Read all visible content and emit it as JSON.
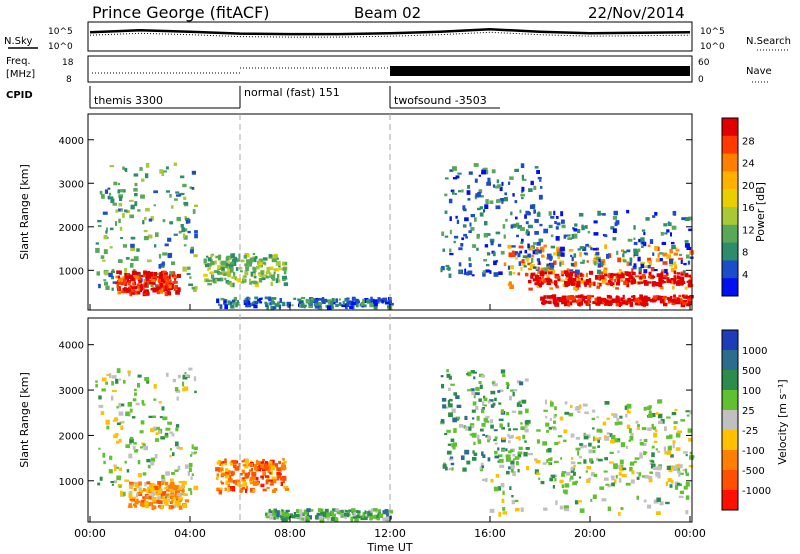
{
  "header": {
    "station": "Prince George (fitACF)",
    "beam": "Beam 02",
    "date": "22/Nov/2014"
  },
  "top_panels": {
    "nsky_label": "N.Sky",
    "nsky_ticks": [
      "10^5",
      "10^0"
    ],
    "nsearch_label": "N.Search",
    "freq_label_1": "Freq.",
    "freq_label_2": "[MHz]",
    "freq_ticks": [
      "18",
      "8"
    ],
    "nave_ticks": [
      "60",
      "0"
    ],
    "nave_label": "Nave",
    "cpid_label": "CPID",
    "cpid_modes": [
      "themis 3300",
      "normal (fast) 151",
      "twofsound -3503"
    ]
  },
  "colorbars": {
    "power": {
      "label": "Power [dB]",
      "ticks": [
        "28",
        "24",
        "20",
        "16",
        "12",
        "8",
        "4"
      ],
      "colors": [
        "#e00000",
        "#ff3a00",
        "#ff8000",
        "#ffb000",
        "#e8d000",
        "#a8c838",
        "#58a858",
        "#2c8c6c",
        "#1c4cc8",
        "#0010f0"
      ]
    },
    "velocity": {
      "label": "Velocity [m s⁻¹]",
      "ticks": [
        "1000",
        "500",
        "100",
        "25",
        "-25",
        "-100",
        "-500",
        "-1000"
      ],
      "colors": [
        "#1c3cb8",
        "#2c6c8c",
        "#2c8c4c",
        "#60c030",
        "#c0c0c0",
        "#ffc000",
        "#ff8000",
        "#ff5000",
        "#ff1000"
      ]
    }
  },
  "axes": {
    "ylabel": "Slant Range [km]",
    "xlabel": "Time UT",
    "yticks": [
      "4000",
      "3000",
      "2000",
      "1000"
    ],
    "xticks": [
      "00:00",
      "04:00",
      "08:00",
      "12:00",
      "16:00",
      "20:00",
      "00:00"
    ]
  },
  "chart_data": [
    {
      "type": "line",
      "name": "N.Sky / N.Search",
      "x": [
        0,
        2,
        4,
        6,
        8,
        10,
        12,
        14,
        16,
        18,
        20,
        22,
        24
      ],
      "y_log10": [
        3.5,
        3.9,
        3.6,
        3.2,
        3.1,
        3.1,
        3.3,
        3.6,
        4.1,
        3.6,
        3.3,
        3.4,
        3.5
      ],
      "ylim": [
        0,
        5
      ]
    },
    {
      "type": "line",
      "name": "Freq / Nave",
      "x": [
        0,
        6,
        12,
        24
      ],
      "y": [
        10.5,
        12.5,
        11.5,
        11.5
      ],
      "ylim": [
        8,
        18
      ]
    },
    {
      "type": "heatmap",
      "name": "Power",
      "xlim": [
        0,
        24
      ],
      "ylim": [
        180,
        4500
      ],
      "units": {
        "x": "hours UT",
        "y": "km",
        "value": "dB"
      },
      "regions": [
        {
          "t0": 0.2,
          "t1": 4.2,
          "r0": 600,
          "r1": 3500,
          "level": 7
        },
        {
          "t0": 1.0,
          "t1": 3.5,
          "r0": 500,
          "r1": 1000,
          "level": 1
        },
        {
          "t0": 4.5,
          "t1": 7.8,
          "r0": 700,
          "r1": 1400,
          "level": 6
        },
        {
          "t0": 5.0,
          "t1": 12.0,
          "r0": 180,
          "r1": 400,
          "level": 8
        },
        {
          "t0": 14.0,
          "t1": 18.0,
          "r0": 900,
          "r1": 3500,
          "level": 8
        },
        {
          "t0": 16.5,
          "t1": 24.0,
          "r0": 600,
          "r1": 1600,
          "level": 3
        },
        {
          "t0": 17.5,
          "t1": 24.0,
          "r0": 700,
          "r1": 1000,
          "level": 0
        },
        {
          "t0": 18.0,
          "t1": 24.0,
          "r0": 250,
          "r1": 450,
          "level": 0
        },
        {
          "t0": 17.0,
          "t1": 24.0,
          "r0": 1000,
          "r1": 2400,
          "level": 8
        }
      ]
    },
    {
      "type": "heatmap",
      "name": "Velocity",
      "xlim": [
        0,
        24
      ],
      "ylim": [
        180,
        4500
      ],
      "units": {
        "x": "hours UT",
        "y": "km",
        "value": "m/s"
      },
      "regions": [
        {
          "t0": 0.2,
          "t1": 4.2,
          "r0": 700,
          "r1": 3500,
          "level": 4
        },
        {
          "t0": 1.5,
          "t1": 3.8,
          "r0": 450,
          "r1": 1000,
          "level": 6
        },
        {
          "t0": 5.0,
          "t1": 7.8,
          "r0": 800,
          "r1": 1500,
          "level": 7
        },
        {
          "t0": 7.0,
          "t1": 12.0,
          "r0": 180,
          "r1": 400,
          "level": 3
        },
        {
          "t0": 14.0,
          "t1": 17.5,
          "r0": 1200,
          "r1": 3500,
          "level": 3
        },
        {
          "t0": 15.5,
          "t1": 24.0,
          "r0": 300,
          "r1": 2500,
          "level": 4
        },
        {
          "t0": 18.0,
          "t1": 24.0,
          "r0": 900,
          "r1": 2800,
          "level": 4
        }
      ]
    }
  ]
}
